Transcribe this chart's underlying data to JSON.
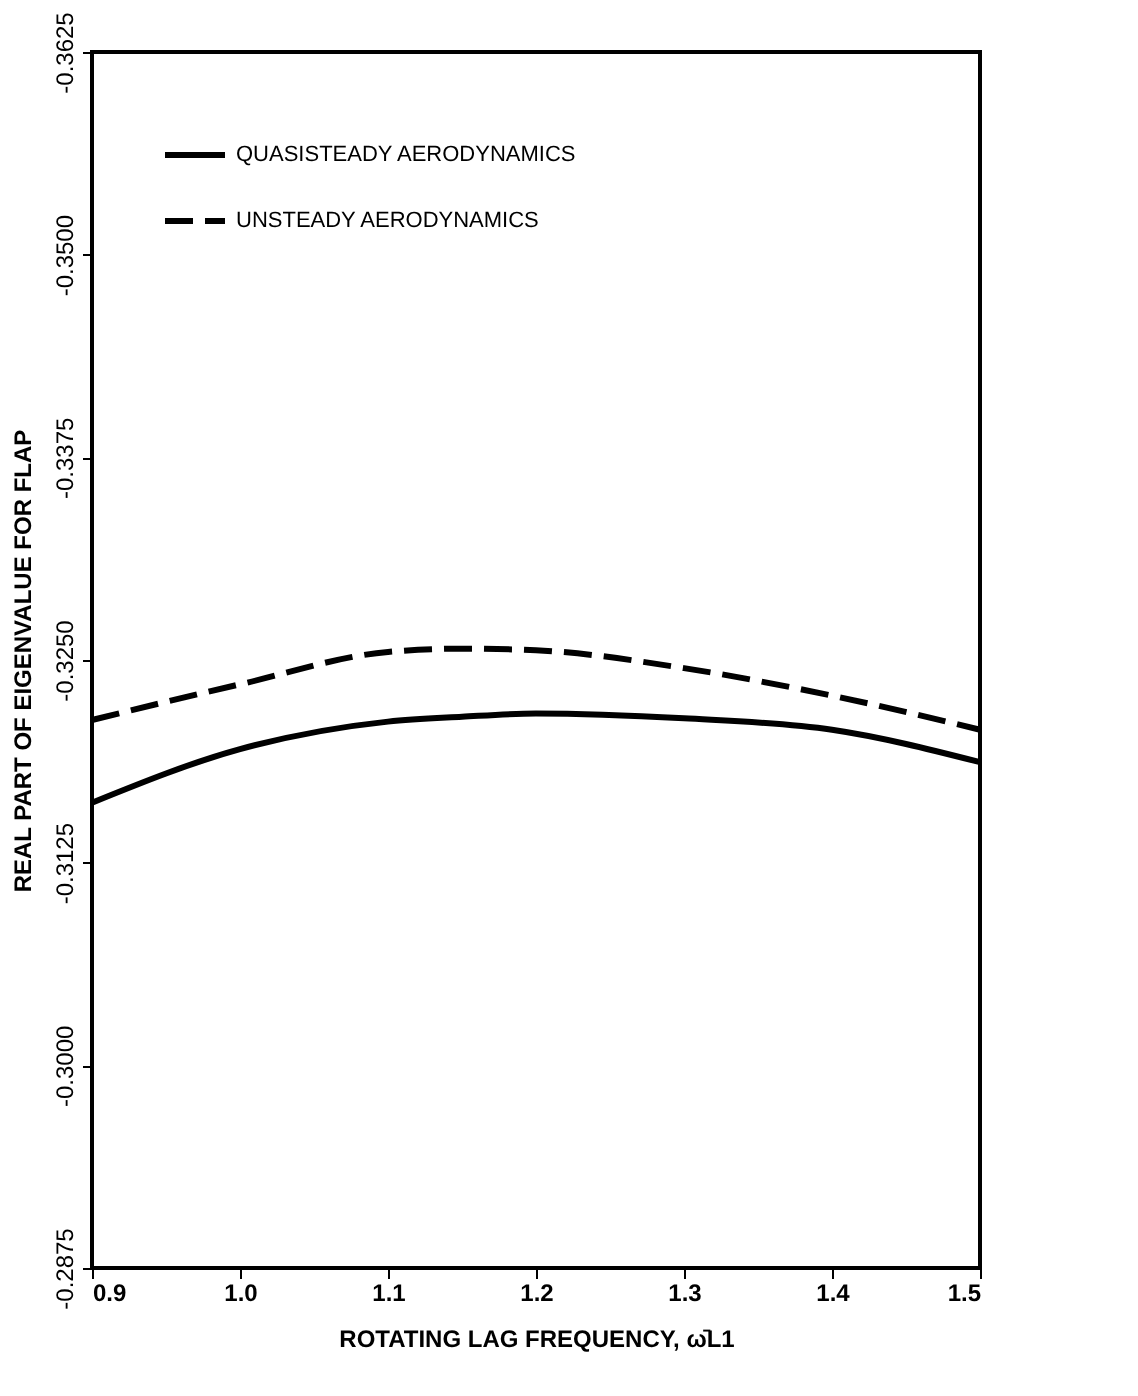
{
  "chart_data": {
    "type": "line",
    "xlabel": "ROTATING LAG FREQUENCY, ω̄L1",
    "ylabel": "REAL PART OF EIGENVALUE FOR FLAP",
    "x": [
      0.9,
      1.0,
      1.1,
      1.15,
      1.2,
      1.3,
      1.4,
      1.5
    ],
    "series": [
      {
        "name": "QUASISTEADY AERODYNAMICS",
        "color": "#000000",
        "line_style": "solid",
        "values": [
          -0.3162,
          -0.3195,
          -0.3212,
          -0.3215,
          -0.3217,
          -0.3214,
          -0.3207,
          -0.3187
        ]
      },
      {
        "name": "UNSTEADY AERODYNAMICS",
        "color": "#000000",
        "line_style": "dashed",
        "values": [
          -0.3213,
          -0.3235,
          -0.3255,
          -0.3257,
          -0.3256,
          -0.3245,
          -0.3228,
          -0.3207
        ]
      }
    ],
    "xlim": [
      0.9,
      1.5
    ],
    "xticks": [
      {
        "value": 0.9,
        "label": "0.9"
      },
      {
        "value": 1.0,
        "label": "1.0"
      },
      {
        "value": 1.1,
        "label": "1.1"
      },
      {
        "value": 1.2,
        "label": "1.2"
      },
      {
        "value": 1.3,
        "label": "1.3"
      },
      {
        "value": 1.4,
        "label": "1.4"
      },
      {
        "value": 1.5,
        "label": "1.5"
      }
    ],
    "ylim": [
      -0.2875,
      -0.3625
    ],
    "yticks": [
      {
        "value": -0.2875,
        "label": "-0.2875"
      },
      {
        "value": -0.3,
        "label": "-0.3000"
      },
      {
        "value": -0.3125,
        "label": "-0.3125"
      },
      {
        "value": -0.325,
        "label": "-0.3250"
      },
      {
        "value": -0.3375,
        "label": "-0.3375"
      },
      {
        "value": -0.35,
        "label": "-0.3500"
      },
      {
        "value": -0.3625,
        "label": "-0.3625"
      }
    ],
    "grid": false,
    "legend": "top left"
  }
}
